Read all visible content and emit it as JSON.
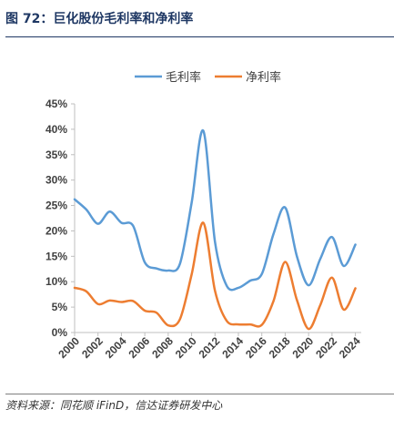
{
  "header": {
    "title": "图 72：巨化股份毛利率和净利率"
  },
  "footer": {
    "source": "资料来源：同花顺 iFinD，信达证券研发中心"
  },
  "colors": {
    "gross": "#5b9bd5",
    "net": "#ed7d31",
    "axis": "#bfbfbf",
    "title": "#1f3864"
  },
  "chart_data": {
    "type": "line",
    "title": "",
    "xlabel": "",
    "ylabel": "",
    "ylim": [
      0,
      45
    ],
    "yticks": [
      "0%",
      "5%",
      "10%",
      "15%",
      "20%",
      "25%",
      "30%",
      "35%",
      "40%",
      "45%"
    ],
    "xlim": [
      2000,
      2024.5
    ],
    "xticks": [
      "2000",
      "2002",
      "2004",
      "2006",
      "2008",
      "2010",
      "2012",
      "2014",
      "2016",
      "2018",
      "2020",
      "2022",
      "2024"
    ],
    "grid": false,
    "legend_position": "top-center",
    "series": [
      {
        "name": "毛利率",
        "x": [
          2000,
          2001,
          2002,
          2003,
          2004,
          2005,
          2006,
          2007,
          2008,
          2009,
          2010,
          2011,
          2012,
          2013,
          2014,
          2015,
          2016,
          2017,
          2018,
          2019,
          2020,
          2021,
          2022,
          2023,
          2024
        ],
        "values": [
          26.2,
          24.2,
          21.4,
          23.8,
          21.6,
          21.0,
          13.8,
          12.6,
          12.2,
          13.5,
          25.5,
          39.7,
          17.8,
          9.2,
          8.8,
          10.2,
          11.5,
          19.4,
          24.6,
          15.0,
          9.3,
          14.5,
          18.8,
          13.1,
          17.3
        ]
      },
      {
        "name": "净利率",
        "x": [
          2000,
          2001,
          2002,
          2003,
          2004,
          2005,
          2006,
          2007,
          2008,
          2009,
          2010,
          2011,
          2012,
          2013,
          2014,
          2015,
          2016,
          2017,
          2018,
          2019,
          2020,
          2021,
          2022,
          2023,
          2024
        ],
        "values": [
          8.8,
          8.1,
          5.6,
          6.3,
          6.0,
          6.2,
          4.3,
          3.9,
          1.4,
          2.6,
          11.4,
          21.6,
          8.2,
          2.3,
          1.6,
          1.6,
          1.5,
          6.2,
          13.9,
          6.4,
          0.7,
          5.4,
          10.8,
          4.5,
          8.7
        ]
      }
    ]
  }
}
